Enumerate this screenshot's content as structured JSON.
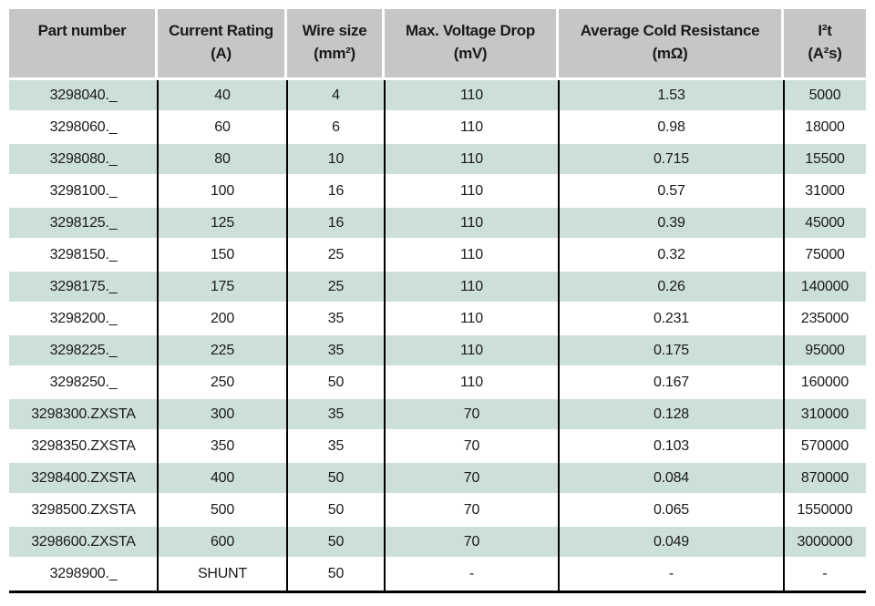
{
  "table": {
    "columns": [
      {
        "title": "Part number",
        "unit": ""
      },
      {
        "title": "Current Rating",
        "unit": "(A)"
      },
      {
        "title": "Wire size",
        "unit": "(mm²)"
      },
      {
        "title": "Max. Voltage Drop",
        "unit": "(mV)"
      },
      {
        "title": "Average Cold Resistance",
        "unit": "(mΩ)"
      },
      {
        "title": "I²t",
        "unit": "(A²s)"
      }
    ],
    "rows": [
      [
        "3298040._",
        "40",
        "4",
        "110",
        "1.53",
        "5000"
      ],
      [
        "3298060._",
        "60",
        "6",
        "110",
        "0.98",
        "18000"
      ],
      [
        "3298080._",
        "80",
        "10",
        "110",
        "0.715",
        "15500"
      ],
      [
        "3298100._",
        "100",
        "16",
        "110",
        "0.57",
        "31000"
      ],
      [
        "3298125._",
        "125",
        "16",
        "110",
        "0.39",
        "45000"
      ],
      [
        "3298150._",
        "150",
        "25",
        "110",
        "0.32",
        "75000"
      ],
      [
        "3298175._",
        "175",
        "25",
        "110",
        "0.26",
        "140000"
      ],
      [
        "3298200._",
        "200",
        "35",
        "110",
        "0.231",
        "235000"
      ],
      [
        "3298225._",
        "225",
        "35",
        "110",
        "0.175",
        "95000"
      ],
      [
        "3298250._",
        "250",
        "50",
        "110",
        "0.167",
        "160000"
      ],
      [
        "3298300.ZXSTA",
        "300",
        "35",
        "70",
        "0.128",
        "310000"
      ],
      [
        "3298350.ZXSTA",
        "350",
        "35",
        "70",
        "0.103",
        "570000"
      ],
      [
        "3298400.ZXSTA",
        "400",
        "50",
        "70",
        "0.084",
        "870000"
      ],
      [
        "3298500.ZXSTA",
        "500",
        "50",
        "70",
        "0.065",
        "1550000"
      ],
      [
        "3298600.ZXSTA",
        "600",
        "50",
        "70",
        "0.049",
        "3000000"
      ],
      [
        "3298900._",
        "SHUNT",
        "50",
        "-",
        "-",
        "-"
      ]
    ],
    "colors": {
      "header_bg": "#c6c6c6",
      "row_green": "#cde0d8",
      "row_white": "#ffffff",
      "grid_line": "#000000",
      "text": "#1a1a1a"
    }
  }
}
